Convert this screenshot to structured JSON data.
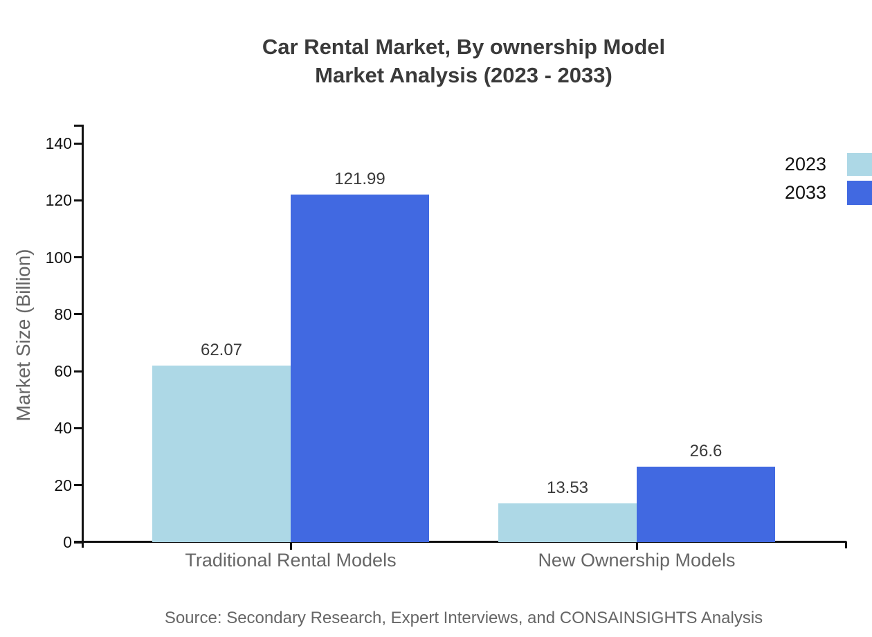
{
  "title": {
    "line1": "Car Rental Market, By ownership Model",
    "line2": "Market Analysis (2023 - 2033)"
  },
  "source": "Source: Secondary Research, Expert Interviews, and CONSAINSIGHTS Analysis",
  "chart_data": {
    "type": "bar",
    "title": "Car Rental Market, By ownership Model Market Analysis (2023 - 2033)",
    "categories": [
      "Traditional Rental Models",
      "New Ownership Models"
    ],
    "series": [
      {
        "name": "2023",
        "color": "#ADD8E6",
        "values": [
          62.07,
          13.53
        ]
      },
      {
        "name": "2033",
        "color": "#4169E1",
        "values": [
          121.99,
          26.6
        ]
      }
    ],
    "value_labels": [
      "62.07",
      "121.99",
      "13.53",
      "26.6"
    ],
    "xlabel": "",
    "ylabel": "Market Size (Billion)",
    "ylim": [
      0,
      140
    ],
    "yticks": [
      0,
      20,
      40,
      60,
      80,
      100,
      120,
      140
    ],
    "grid": false,
    "legend_position": "top-right",
    "axis_color": "#111111",
    "text_colors": {
      "title": "#3a3a3a",
      "tick_labels": "#111111",
      "value_labels": "#3a3a3a",
      "category_labels": "#666666",
      "source": "#666666"
    }
  }
}
